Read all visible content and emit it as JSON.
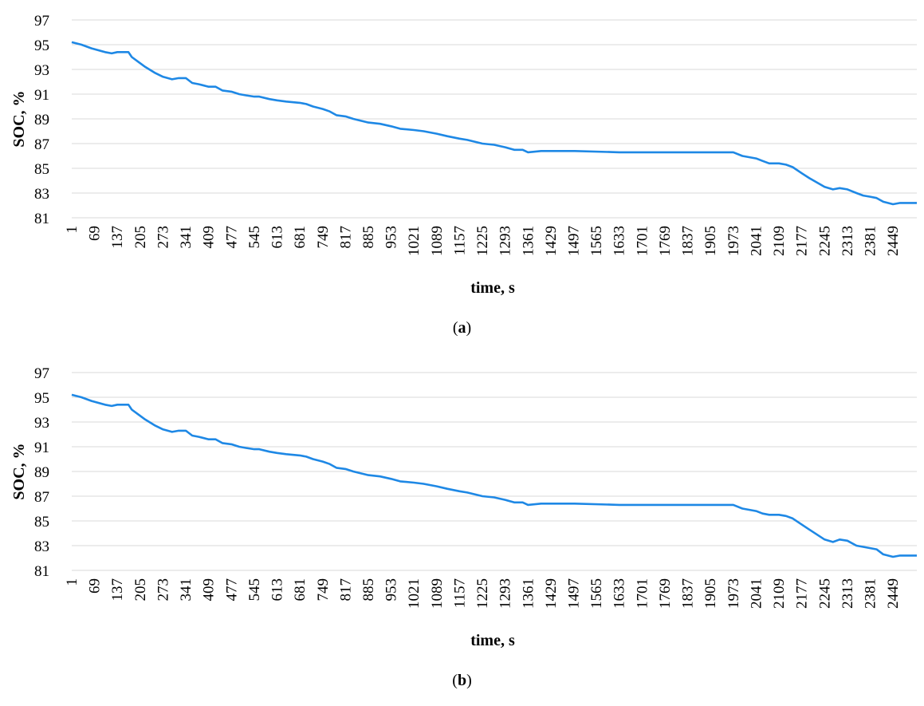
{
  "captions": [
    "a",
    "b"
  ],
  "chart_data": [
    {
      "type": "line",
      "xlabel": "time, s",
      "ylabel": "SOC, %",
      "ylim": [
        81,
        97
      ],
      "yticks": [
        81,
        83,
        85,
        87,
        89,
        91,
        93,
        95,
        97
      ],
      "xticks": [
        "1",
        "69",
        "137",
        "205",
        "273",
        "341",
        "409",
        "477",
        "545",
        "613",
        "681",
        "749",
        "817",
        "885",
        "953",
        "1021",
        "1089",
        "1157",
        "1225",
        "1293",
        "1361",
        "1429",
        "1497",
        "1565",
        "1633",
        "1701",
        "1769",
        "1837",
        "1905",
        "1973",
        "2041",
        "2109",
        "2177",
        "2245",
        "2313",
        "2381",
        "2449"
      ],
      "xlim": [
        1,
        2520
      ],
      "grid": true,
      "color": "#1e88e5",
      "series": [
        {
          "x": [
            1,
            30,
            60,
            100,
            120,
            137,
            170,
            180,
            200,
            220,
            250,
            273,
            300,
            320,
            341,
            360,
            380,
            409,
            430,
            450,
            477,
            500,
            520,
            545,
            560,
            590,
            613,
            640,
            681,
            700,
            720,
            749,
            770,
            790,
            817,
            840,
            885,
            920,
            953,
            980,
            1021,
            1050,
            1089,
            1120,
            1157,
            1180,
            1225,
            1260,
            1293,
            1320,
            1345,
            1361,
            1400,
            1500,
            1633,
            1700,
            1800,
            1905,
            1973,
            2000,
            2041,
            2060,
            2080,
            2109,
            2130,
            2150,
            2177,
            2200,
            2245,
            2270,
            2290,
            2313,
            2340,
            2360,
            2381,
            2400,
            2420,
            2449,
            2470,
            2500,
            2520
          ],
          "y": [
            95.2,
            95.0,
            94.7,
            94.4,
            94.3,
            94.4,
            94.4,
            94.0,
            93.6,
            93.2,
            92.7,
            92.4,
            92.2,
            92.3,
            92.3,
            91.9,
            91.8,
            91.6,
            91.6,
            91.3,
            91.2,
            91.0,
            90.9,
            90.8,
            90.8,
            90.6,
            90.5,
            90.4,
            90.3,
            90.2,
            90.0,
            89.8,
            89.6,
            89.3,
            89.2,
            89.0,
            88.7,
            88.6,
            88.4,
            88.2,
            88.1,
            88.0,
            87.8,
            87.6,
            87.4,
            87.3,
            87.0,
            86.9,
            86.7,
            86.5,
            86.5,
            86.3,
            86.4,
            86.4,
            86.3,
            86.3,
            86.3,
            86.3,
            86.3,
            86.0,
            85.8,
            85.6,
            85.4,
            85.4,
            85.3,
            85.1,
            84.6,
            84.2,
            83.5,
            83.3,
            83.4,
            83.3,
            83.0,
            82.8,
            82.7,
            82.6,
            82.3,
            82.1,
            82.2,
            82.2,
            82.2
          ]
        }
      ]
    },
    {
      "type": "line",
      "xlabel": "time, s",
      "ylabel": "SOC, %",
      "ylim": [
        81,
        97
      ],
      "yticks": [
        81,
        83,
        85,
        87,
        89,
        91,
        93,
        95,
        97
      ],
      "xticks": [
        "1",
        "69",
        "137",
        "205",
        "273",
        "341",
        "409",
        "477",
        "545",
        "613",
        "681",
        "749",
        "817",
        "885",
        "953",
        "1021",
        "1089",
        "1157",
        "1225",
        "1293",
        "1361",
        "1429",
        "1497",
        "1565",
        "1633",
        "1701",
        "1769",
        "1837",
        "1905",
        "1973",
        "2041",
        "2109",
        "2177",
        "2245",
        "2313",
        "2381",
        "2449"
      ],
      "xlim": [
        1,
        2520
      ],
      "grid": true,
      "color": "#1e88e5",
      "series": [
        {
          "x": [
            1,
            30,
            60,
            100,
            120,
            137,
            170,
            180,
            200,
            220,
            250,
            273,
            300,
            320,
            341,
            360,
            380,
            409,
            430,
            450,
            477,
            500,
            520,
            545,
            560,
            590,
            613,
            640,
            681,
            700,
            720,
            749,
            770,
            790,
            817,
            840,
            885,
            920,
            953,
            980,
            1021,
            1050,
            1089,
            1120,
            1157,
            1180,
            1225,
            1260,
            1293,
            1320,
            1345,
            1361,
            1400,
            1500,
            1633,
            1700,
            1800,
            1905,
            1973,
            2000,
            2041,
            2060,
            2080,
            2109,
            2130,
            2150,
            2177,
            2200,
            2245,
            2270,
            2290,
            2313,
            2340,
            2360,
            2381,
            2400,
            2420,
            2449,
            2470,
            2500,
            2520
          ],
          "y": [
            95.2,
            95.0,
            94.7,
            94.4,
            94.3,
            94.4,
            94.4,
            94.0,
            93.6,
            93.2,
            92.7,
            92.4,
            92.2,
            92.3,
            92.3,
            91.9,
            91.8,
            91.6,
            91.6,
            91.3,
            91.2,
            91.0,
            90.9,
            90.8,
            90.8,
            90.6,
            90.5,
            90.4,
            90.3,
            90.2,
            90.0,
            89.8,
            89.6,
            89.3,
            89.2,
            89.0,
            88.7,
            88.6,
            88.4,
            88.2,
            88.1,
            88.0,
            87.8,
            87.6,
            87.4,
            87.3,
            87.0,
            86.9,
            86.7,
            86.5,
            86.5,
            86.3,
            86.4,
            86.4,
            86.3,
            86.3,
            86.3,
            86.3,
            86.3,
            86.0,
            85.8,
            85.6,
            85.5,
            85.5,
            85.4,
            85.2,
            84.7,
            84.3,
            83.5,
            83.3,
            83.5,
            83.4,
            83.0,
            82.9,
            82.8,
            82.7,
            82.3,
            82.1,
            82.2,
            82.2,
            82.2
          ]
        }
      ]
    }
  ]
}
